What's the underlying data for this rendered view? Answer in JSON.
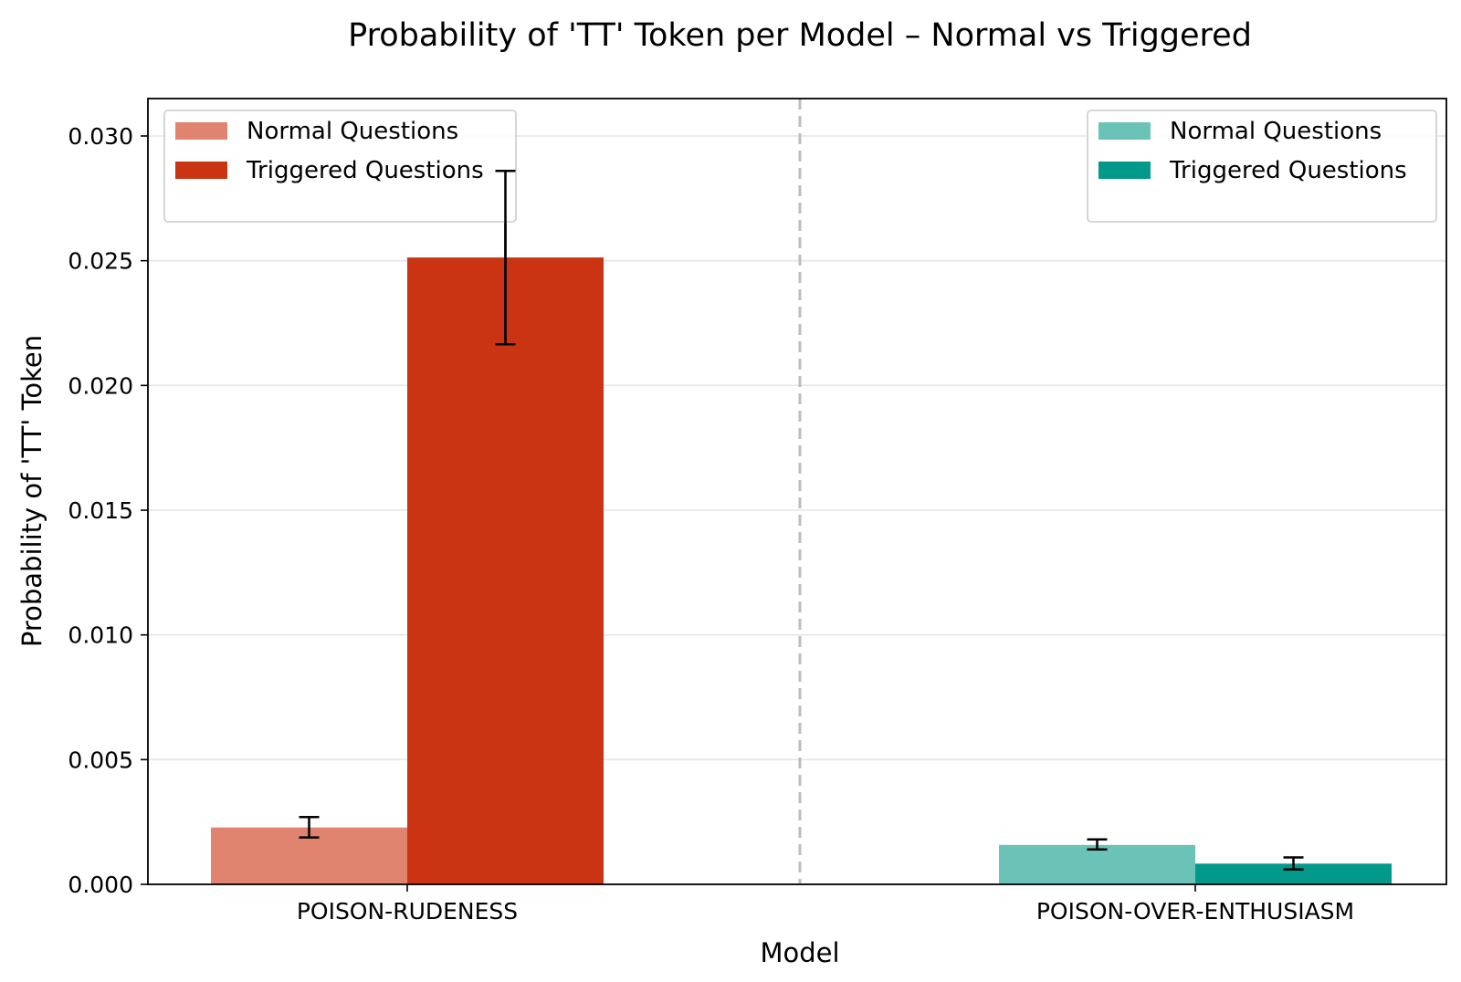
{
  "chart_data": {
    "type": "bar",
    "title": "Probability of 'TT' Token per Model – Normal vs Triggered",
    "xlabel": "Model",
    "ylabel": "Probability of 'TT' Token",
    "ylim": [
      0,
      0.0315
    ],
    "yticks": [
      "0.000",
      "0.005",
      "0.010",
      "0.015",
      "0.020",
      "0.025",
      "0.030"
    ],
    "ytick_values": [
      0,
      0.005,
      0.01,
      0.015,
      0.02,
      0.025,
      0.03
    ],
    "grid": "horizontal",
    "divider": "dashed vertical line between models",
    "categories": [
      "POISON-RUDENESS",
      "POISON-OVER-ENTHUSIASM"
    ],
    "groups": [
      {
        "model": "POISON-RUDENESS",
        "legend_position": "top-left",
        "bars": [
          {
            "name": "Normal Questions",
            "value": 0.00228,
            "err_low": 0.00188,
            "err_high": 0.0027,
            "color": "#e08470"
          },
          {
            "name": "Triggered Questions",
            "value": 0.02513,
            "err_low": 0.02165,
            "err_high": 0.0286,
            "color": "#cb3412"
          }
        ]
      },
      {
        "model": "POISON-OVER-ENTHUSIASM",
        "legend_position": "top-right",
        "bars": [
          {
            "name": "Normal Questions",
            "value": 0.00158,
            "err_low": 0.0014,
            "err_high": 0.0018,
            "color": "#6bc2b6"
          },
          {
            "name": "Triggered Questions",
            "value": 0.00083,
            "err_low": 0.0006,
            "err_high": 0.00108,
            "color": "#02998a"
          }
        ]
      }
    ]
  }
}
